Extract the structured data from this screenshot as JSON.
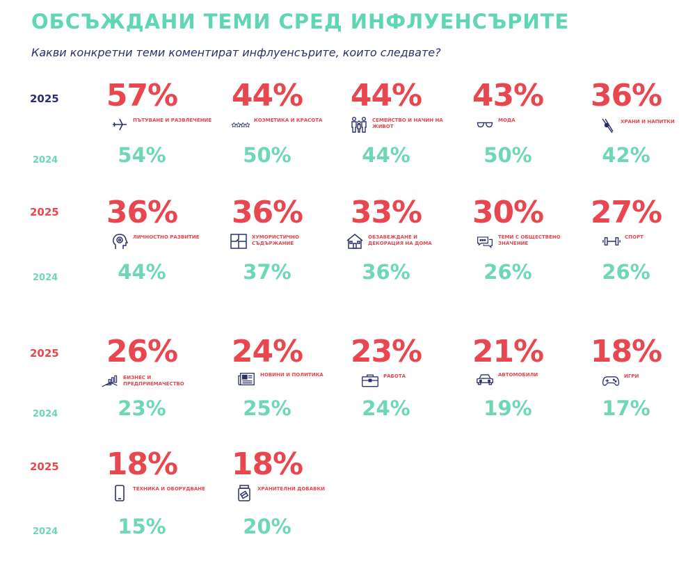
{
  "title": "ОБСЪЖДАНИ ТЕМИ СРЕД ИНФЛУЕНСЪРИТЕ",
  "subtitle": "Какви конкретни теми коментират инфлуенсърите, които следвате?",
  "colors": {
    "y2025": "#e8474f",
    "y2024": "#6dd7b8",
    "title": "#5fd6b5",
    "icon": "#2b2f6b"
  },
  "rows": [
    {
      "label_2025": "2025",
      "label_2024": "2024",
      "label_2025_color": "#2b2f6b"
    },
    {
      "label_2025": "2025",
      "label_2024": "2024",
      "label_2025_color": "#e8474f"
    },
    {
      "label_2025": "2025",
      "label_2024": "2024",
      "label_2025_color": "#e8474f"
    },
    {
      "label_2025": "2025",
      "label_2024": "2024",
      "label_2025_color": "#e8474f"
    }
  ],
  "chart_data": {
    "type": "table",
    "title": "ОБСЪЖДАНИ ТЕМИ СРЕД ИНФЛУЕНСЪРИТЕ",
    "subtitle": "Какви конкретни теми коментират инфлуенсърите, които следвате?",
    "series_names": [
      "2025",
      "2024"
    ],
    "topics": [
      {
        "label": "Пътуване и развлечение",
        "icon": "airplane-icon",
        "v2025": "57%",
        "v2024": "54%"
      },
      {
        "label": "Козметика и красота",
        "icon": "stars-icon",
        "v2025": "44%",
        "v2024": "50%"
      },
      {
        "label": "Семейство и начин на живот",
        "icon": "family-icon",
        "v2025": "44%",
        "v2024": "44%"
      },
      {
        "label": "Мода",
        "icon": "glasses-icon",
        "v2025": "43%",
        "v2024": "50%"
      },
      {
        "label": "Храни и напитки",
        "icon": "chopsticks-icon",
        "v2025": "36%",
        "v2024": "42%"
      },
      {
        "label": "Личностно развитие",
        "icon": "head-target-icon",
        "v2025": "36%",
        "v2024": "44%"
      },
      {
        "label": "Хумористично съдържание",
        "icon": "puzzle-icon",
        "v2025": "36%",
        "v2024": "37%"
      },
      {
        "label": "Обзавеждане и декорация на дома",
        "icon": "house-icon",
        "v2025": "33%",
        "v2024": "36%"
      },
      {
        "label": "Теми с обществено значение",
        "icon": "chat-bubbles-icon",
        "v2025": "30%",
        "v2024": "26%"
      },
      {
        "label": "Спорт",
        "icon": "dumbbell-icon",
        "v2025": "27%",
        "v2024": "26%"
      },
      {
        "label": "Бизнес и предприемачество",
        "icon": "growth-hand-icon",
        "v2025": "26%",
        "v2024": "23%"
      },
      {
        "label": "Новини и политика",
        "icon": "newspaper-icon",
        "v2025": "24%",
        "v2024": "25%"
      },
      {
        "label": "Работа",
        "icon": "briefcase-icon",
        "v2025": "23%",
        "v2024": "24%"
      },
      {
        "label": "Автомобили",
        "icon": "car-icon",
        "v2025": "21%",
        "v2024": "19%"
      },
      {
        "label": "Игри",
        "icon": "gamepad-icon",
        "v2025": "18%",
        "v2024": "17%"
      },
      {
        "label": "Техника и оборудване",
        "icon": "smartphone-icon",
        "v2025": "18%",
        "v2024": "15%"
      },
      {
        "label": "Хранителни добавки",
        "icon": "supplement-jar-icon",
        "v2025": "18%",
        "v2024": "20%"
      }
    ]
  }
}
